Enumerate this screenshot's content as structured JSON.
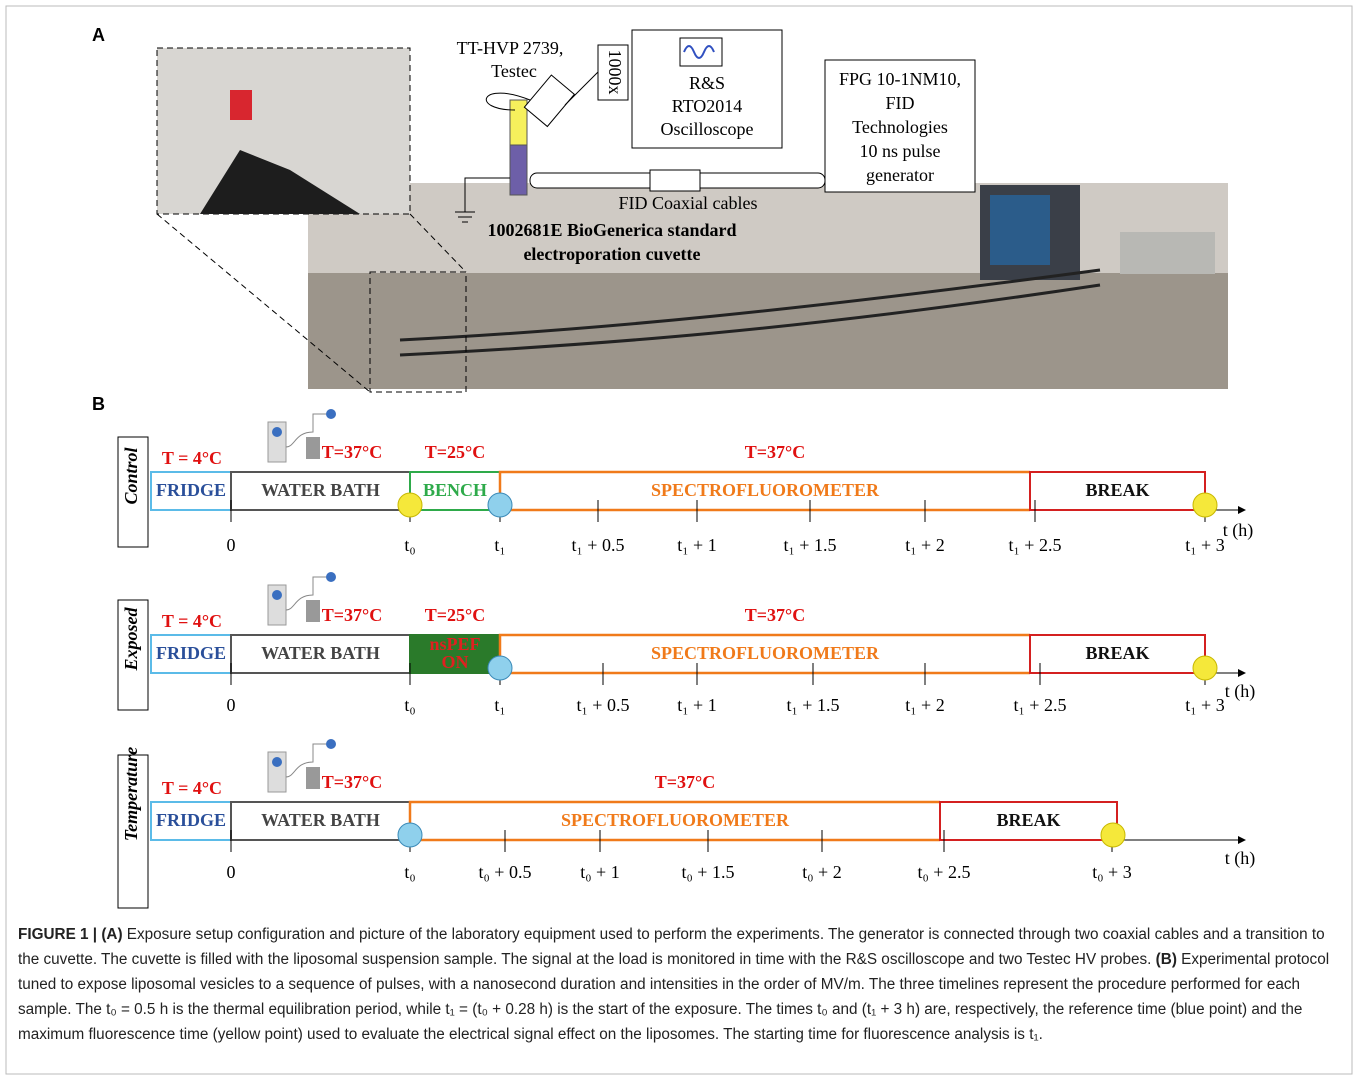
{
  "panel_a": {
    "label": "A",
    "probe": [
      "TT-HVP 2739,",
      "Testec"
    ],
    "attenuator": "1000x",
    "oscilloscope": [
      "R&S",
      "RTO2014",
      "Oscilloscope"
    ],
    "generator": [
      "FPG 10-1NM10,",
      "FID",
      "Technologies",
      "10 ns pulse",
      "generator"
    ],
    "cables": "FID Coaxial cables",
    "cuvette": [
      "1002681E BioGenerica standard",
      "electroporation cuvette"
    ]
  },
  "panel_b": {
    "label": "B",
    "timelines": [
      {
        "name": "Control",
        "temps": [
          "T = 4°C",
          "T=37°C",
          "T=25°C",
          "T=37°C"
        ],
        "segments": [
          "FRIDGE",
          "WATER BATH",
          "BENCH",
          "SPECTROFLUOROMETER",
          "BREAK"
        ],
        "ticks": [
          "0",
          "t₀",
          "t₁",
          "t₁ + 0.5",
          "t₁ + 1",
          "t₁ + 1.5",
          "t₁ + 2",
          "t₁ + 2.5",
          "t₁ + 3"
        ],
        "axis_label": "t  (h)"
      },
      {
        "name": "Exposed",
        "temps": [
          "T = 4°C",
          "T=37°C",
          "T=25°C",
          "T=37°C"
        ],
        "segments": [
          "FRIDGE",
          "WATER BATH",
          [
            "nsPEF",
            "ON"
          ],
          "SPECTROFLUOROMETER",
          "BREAK"
        ],
        "ticks": [
          "0",
          "t₀",
          "t₁",
          "t₁ + 0.5",
          "t₁ + 1",
          "t₁ + 1.5",
          "t₁ + 2",
          "t₁ + 2.5",
          "t₁ + 3"
        ],
        "axis_label": "t (h)"
      },
      {
        "name": "Temperature",
        "temps": [
          "T = 4°C",
          "T=37°C",
          "T=37°C"
        ],
        "segments": [
          "FRIDGE",
          "WATER BATH",
          "SPECTROFLUOROMETER",
          "BREAK"
        ],
        "ticks": [
          "0",
          "t₀",
          "t₀ + 0.5",
          "t₀ + 1",
          "t₀ + 1.5",
          "t₀ + 2",
          "t₀ + 2.5",
          "t₀ + 3"
        ],
        "axis_label": "t (h)"
      }
    ]
  },
  "caption": [
    "FIGURE 1 | (A)",
    " Exposure setup configuration and picture of the laboratory equipment used to perform the experiments. The generator is connected through two coaxial cables and a transition to the cuvette. The cuvette is filled with the liposomal suspension sample. The signal at the load is monitored in time with the R&S oscilloscope and two Testec HV probes. ",
    "(B)",
    " Experimental protocol tuned to expose liposomal vesicles to a sequence of pulses, with a nanosecond duration and intensities in the order of MV/m. The three timelines represent the procedure performed for each sample. The t₀ = 0.5 h is the thermal equilibration period, while t₁ = (t₀ + 0.28 h) is the start of the exposure. The times t₀ and (t₁ + 3 h) are, respectively, the reference time (blue point) and the maximum fluorescence time (yellow point) used to evaluate the electrical signal effect on the liposomes. The starting time for fluorescence analysis is t₁."
  ]
}
